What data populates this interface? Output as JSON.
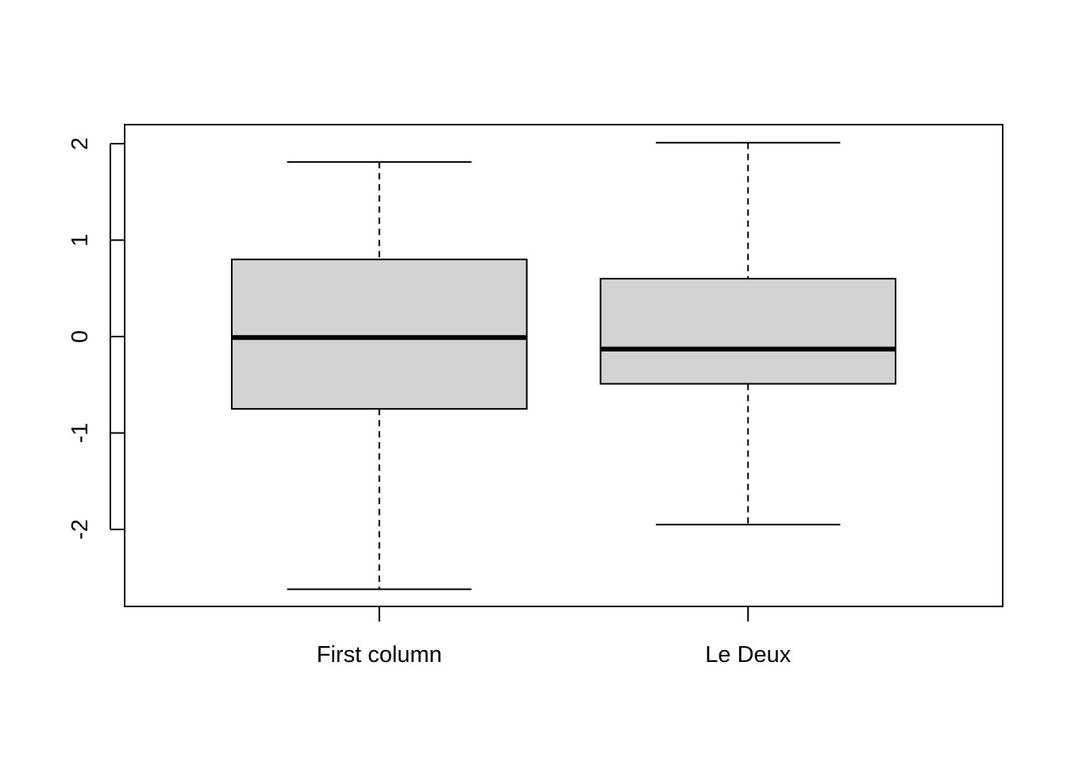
{
  "chart_data": {
    "type": "boxplot",
    "title": "",
    "xlabel": "",
    "ylabel": "",
    "categories": [
      "First column",
      "Le Deux"
    ],
    "boxes": [
      {
        "name": "First column",
        "whisker_low": -2.62,
        "q1": -0.75,
        "median": -0.01,
        "q3": 0.8,
        "whisker_high": 1.81
      },
      {
        "name": "Le Deux",
        "whisker_low": -1.95,
        "q1": -0.49,
        "median": -0.13,
        "q3": 0.6,
        "whisker_high": 2.01
      }
    ],
    "y_ticks": [
      -2,
      -1,
      0,
      1,
      2
    ],
    "y_tick_labels": [
      "-2",
      "-1",
      "0",
      "1",
      "2"
    ],
    "ylim": [
      -2.8,
      2.2
    ],
    "grid": false,
    "colors": {
      "box_fill": "#d3d3d3",
      "line": "#000000",
      "background": "#ffffff"
    }
  }
}
